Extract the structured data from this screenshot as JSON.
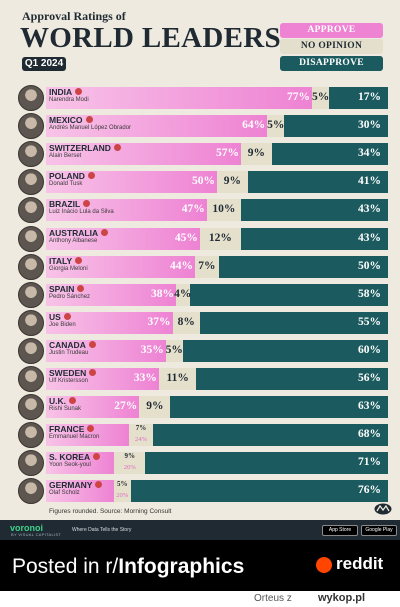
{
  "header": {
    "subtitle": "Approval Ratings of",
    "title": "WORLD LEADERS",
    "quarter": "Q1 2024"
  },
  "legend": {
    "approve": "APPROVE",
    "no_opinion": "NO OPINION",
    "disapprove": "DISAPPROVE"
  },
  "colors": {
    "approve": "#ee82d3",
    "no_opinion": "#e5e0cc",
    "disapprove": "#1b5b5f",
    "background": "#efeadf",
    "ink": "#1f2a33"
  },
  "chart_data": {
    "type": "bar",
    "stacked": true,
    "orientation": "horizontal",
    "title": "WORLD LEADERS",
    "subtitle": "Approval Ratings of",
    "series_names": [
      "APPROVE",
      "NO OPINION",
      "DISAPPROVE"
    ],
    "rows": [
      {
        "country": "INDIA",
        "leader": "Narendra Modi",
        "approve": "77%",
        "no_opinion": "5%",
        "disapprove": "17%",
        "a": 77,
        "n": 5,
        "d": 17
      },
      {
        "country": "MEXICO",
        "leader": "Andrés Manuel López Obrador",
        "approve": "64%",
        "no_opinion": "5%",
        "disapprove": "30%",
        "a": 64,
        "n": 5,
        "d": 30
      },
      {
        "country": "SWITZERLAND",
        "leader": "Alain Berset",
        "approve": "57%",
        "no_opinion": "9%",
        "disapprove": "34%",
        "a": 57,
        "n": 9,
        "d": 34
      },
      {
        "country": "POLAND",
        "leader": "Donald Tusk",
        "approve": "50%",
        "no_opinion": "9%",
        "disapprove": "41%",
        "a": 50,
        "n": 9,
        "d": 41
      },
      {
        "country": "BRAZIL",
        "leader": "Luiz Inácio Lula da Silva",
        "approve": "47%",
        "no_opinion": "10%",
        "disapprove": "43%",
        "a": 47,
        "n": 10,
        "d": 43
      },
      {
        "country": "AUSTRALIA",
        "leader": "Anthony Albanese",
        "approve": "45%",
        "no_opinion": "12%",
        "disapprove": "43%",
        "a": 45,
        "n": 12,
        "d": 43
      },
      {
        "country": "ITALY",
        "leader": "Giorgia Meloni",
        "approve": "44%",
        "no_opinion": "7%",
        "disapprove": "50%",
        "a": 44,
        "n": 7,
        "d": 50
      },
      {
        "country": "SPAIN",
        "leader": "Pedro Sánchez",
        "approve": "38%",
        "no_opinion": "4%",
        "disapprove": "58%",
        "a": 38,
        "n": 4,
        "d": 58
      },
      {
        "country": "US",
        "leader": "Joe Biden",
        "approve": "37%",
        "no_opinion": "8%",
        "disapprove": "55%",
        "a": 37,
        "n": 8,
        "d": 55
      },
      {
        "country": "CANADA",
        "leader": "Justin Trudeau",
        "approve": "35%",
        "no_opinion": "5%",
        "disapprove": "60%",
        "a": 35,
        "n": 5,
        "d": 60
      },
      {
        "country": "SWEDEN",
        "leader": "Ulf Kristersson",
        "approve": "33%",
        "no_opinion": "11%",
        "disapprove": "56%",
        "a": 33,
        "n": 11,
        "d": 56
      },
      {
        "country": "U.K.",
        "leader": "Rishi Sunak",
        "approve": "27%",
        "no_opinion": "9%",
        "disapprove": "63%",
        "a": 27,
        "n": 9,
        "d": 63
      },
      {
        "country": "FRANCE",
        "leader": "Emmanuel Macron",
        "approve": "",
        "no_opinion": "7%",
        "disapprove": "68%",
        "change": "24%",
        "a": 24,
        "n": 7,
        "d": 68
      },
      {
        "country": "S. KOREA",
        "leader": "Yoon Seok-youl",
        "approve": "",
        "no_opinion": "9%",
        "disapprove": "71%",
        "change": "20%",
        "a": 20,
        "n": 9,
        "d": 71
      },
      {
        "country": "GERMANY",
        "leader": "Olaf Scholz",
        "approve": "",
        "no_opinion": "5%",
        "disapprove": "76%",
        "change": "20%",
        "a": 20,
        "n": 5,
        "d": 76
      }
    ]
  },
  "source": "Figures rounded. Source: Morning Consult",
  "footer": {
    "brand": "voronoi",
    "brand_sub": "BY VISUAL CAPITALIST",
    "tagline": "Where Data Tells the Story",
    "app_store": "App Store",
    "google_play": "Google Play"
  },
  "posted": {
    "prefix": "Posted in r/",
    "subreddit": "Infographics",
    "brand": "reddit"
  },
  "credit": {
    "author": "Orteus z",
    "site": "wykop.pl"
  }
}
